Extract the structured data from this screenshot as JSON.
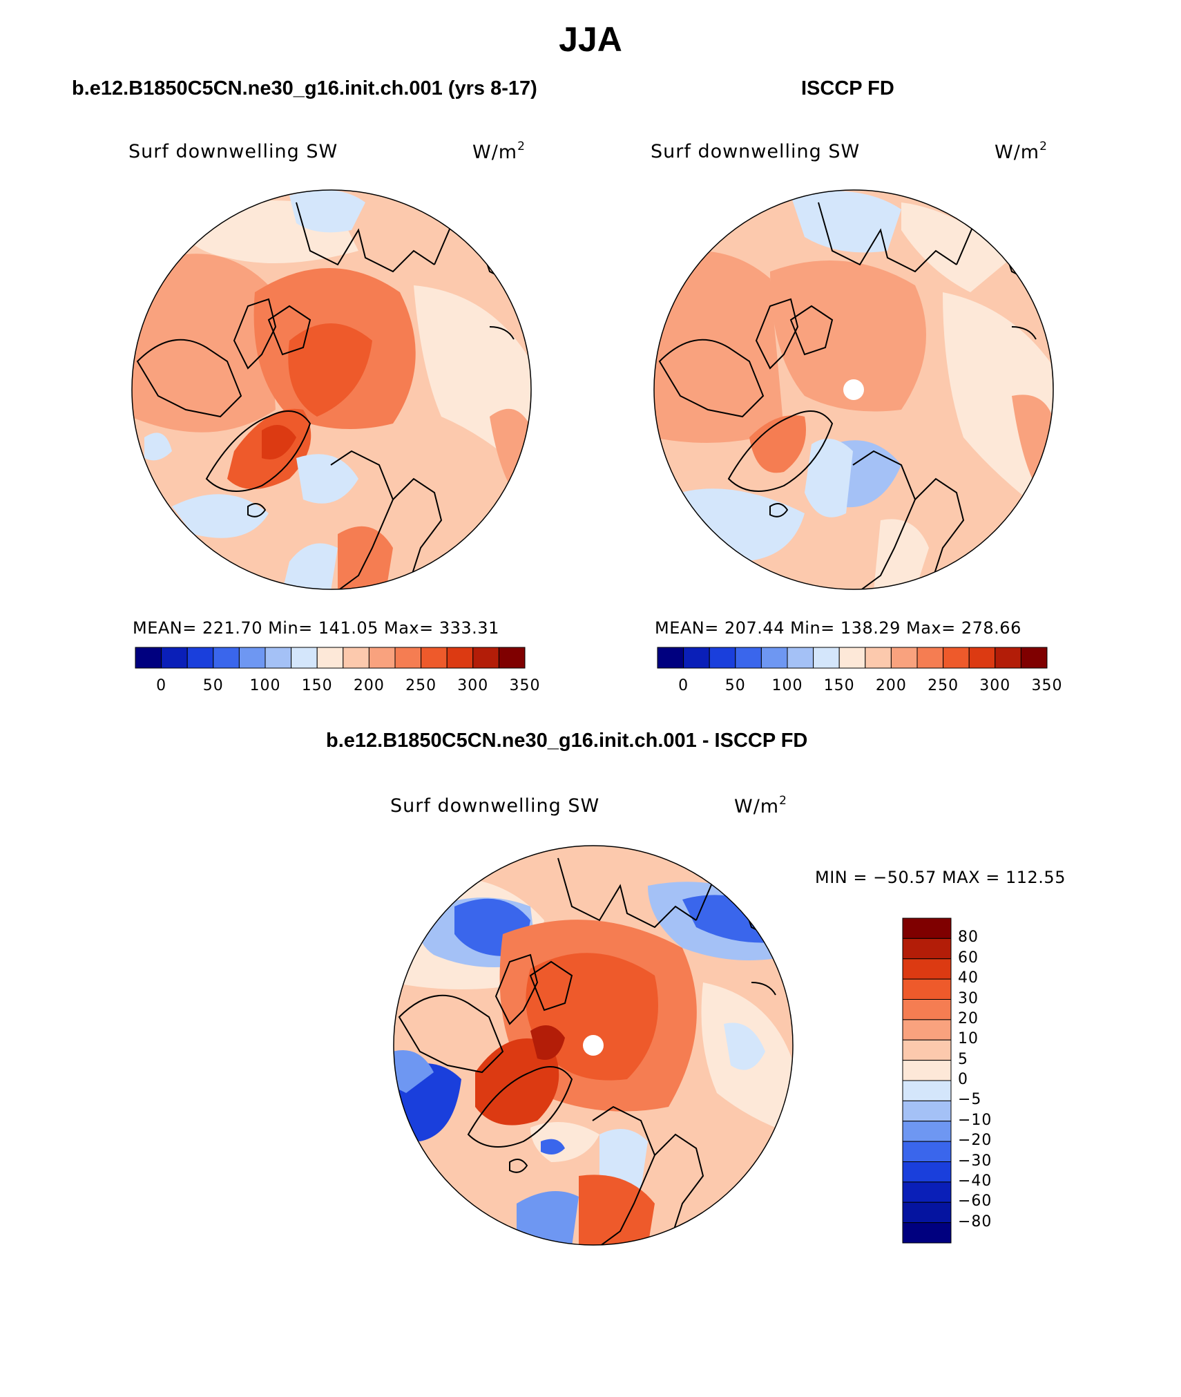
{
  "title": "JJA",
  "panels": [
    {
      "title": "b.e12.B1850C5CN.ne30_g16.init.ch.001 (yrs 8-17)",
      "variable": "Surf downwelling SW",
      "units_base": "W/m",
      "units_exp": "2",
      "stats": "MEAN= 221.70   Min= 141.05   Max= 333.31"
    },
    {
      "title": "ISCCP FD",
      "variable": "Surf downwelling SW",
      "units_base": "W/m",
      "units_exp": "2",
      "stats": "MEAN= 207.44   Min= 138.29   Max= 278.66"
    }
  ],
  "abs_colorbar": {
    "ticks": [
      "0",
      "50",
      "100",
      "150",
      "200",
      "250",
      "300",
      "350"
    ],
    "colors": [
      "#00007f",
      "#0a1fb8",
      "#1a3fdc",
      "#3a66ec",
      "#6e97f2",
      "#a4c1f6",
      "#d4e6fb",
      "#fde8d8",
      "#fcc9ad",
      "#f9a27e",
      "#f57d52",
      "#ee5a2b",
      "#dc3a12",
      "#b31d08",
      "#7f0000"
    ]
  },
  "difference": {
    "title": "b.e12.B1850C5CN.ne30_g16.init.ch.001 - ISCCP FD",
    "variable": "Surf downwelling SW",
    "units_base": "W/m",
    "units_exp": "2",
    "stats": "MIN = −50.57 MAX = 112.55",
    "ticks": [
      "80",
      "60",
      "40",
      "30",
      "20",
      "10",
      "5",
      "0",
      "−5",
      "−10",
      "−20",
      "−30",
      "−40",
      "−60",
      "−80"
    ],
    "colors": [
      "#7f0000",
      "#b31d08",
      "#dc3a12",
      "#ee5a2b",
      "#f57d52",
      "#f9a27e",
      "#fcc9ad",
      "#fde8d8",
      "#d4e6fb",
      "#a4c1f6",
      "#6e97f2",
      "#3a66ec",
      "#1a3fdc",
      "#0a1fb8",
      "#0514a0",
      "#00007f"
    ]
  }
}
